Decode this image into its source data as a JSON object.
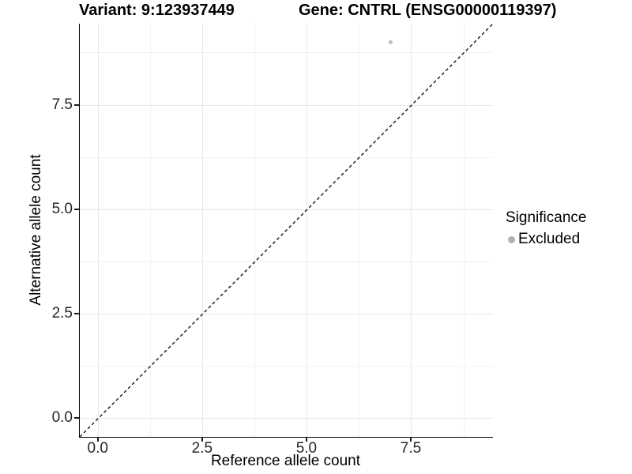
{
  "header": {
    "variant_title": "Variant: 9:123937449",
    "gene_title": "Gene: CNTRL (ENSG00000119397)"
  },
  "axes": {
    "x_label": "Reference allele count",
    "y_label": "Alternative allele count",
    "x_tick_labels": [
      "0.0",
      "2.5",
      "5.0",
      "7.5"
    ],
    "y_tick_labels": [
      "0.0",
      "2.5",
      "5.0",
      "7.5"
    ]
  },
  "legend": {
    "title": "Significance",
    "items": [
      {
        "label": "Excluded",
        "color": "#b0b0b0",
        "marker": "circle-icon"
      }
    ]
  },
  "colors": {
    "point": "#bfbfbf",
    "legend_key": "#b0b0b0",
    "axis_line": "#000000",
    "major_grid": "#e7e7e7",
    "minor_grid": "#f2f2f2",
    "reference_line": "#000000"
  },
  "chart_data": {
    "type": "scatter",
    "title": "Variant: 9:123937449    Gene: CNTRL (ENSG00000119397)",
    "xlabel": "Reference allele count",
    "ylabel": "Alternative allele count",
    "xlim": [
      -0.45,
      9.45
    ],
    "ylim": [
      -0.45,
      9.45
    ],
    "x_ticks": [
      0,
      2.5,
      5,
      7.5
    ],
    "y_ticks": [
      0,
      2.5,
      5,
      7.5
    ],
    "x_minor_ticks": [
      1.25,
      3.75,
      6.25,
      8.75
    ],
    "y_minor_ticks": [
      1.25,
      3.75,
      6.25,
      8.75
    ],
    "grid": true,
    "legend_position": "right",
    "legend_title": "Significance",
    "series": [
      {
        "name": "Excluded",
        "color": "#bfbfbf",
        "points": [
          {
            "x": 7,
            "y": 9
          }
        ]
      }
    ],
    "reference_line": {
      "type": "identity",
      "style": "dashed",
      "color": "#000000",
      "from": [
        -0.45,
        -0.45
      ],
      "to": [
        9.45,
        9.45
      ]
    }
  }
}
